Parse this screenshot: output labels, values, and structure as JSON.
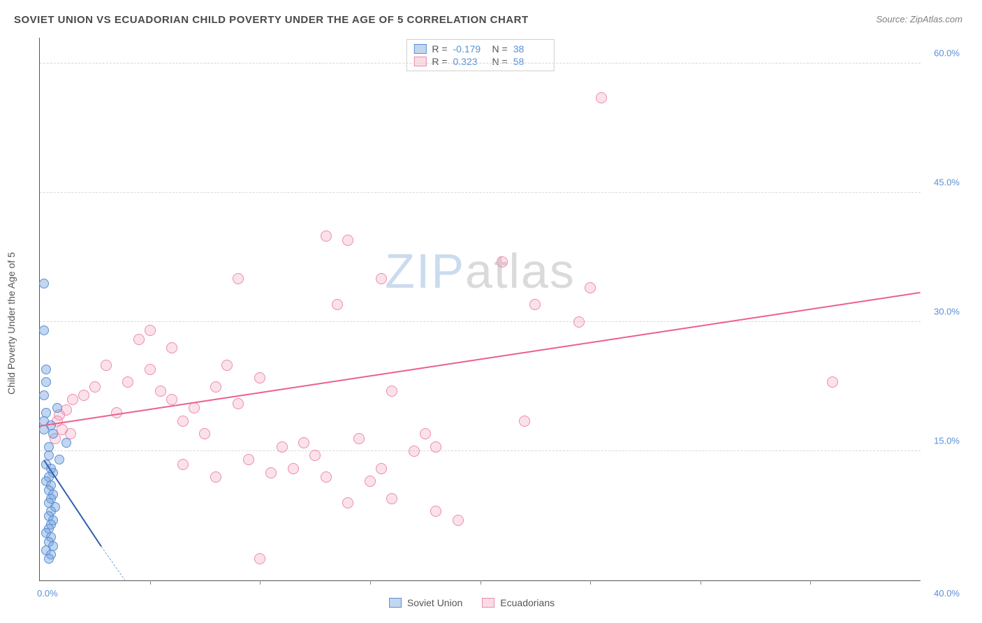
{
  "header": {
    "title": "SOVIET UNION VS ECUADORIAN CHILD POVERTY UNDER THE AGE OF 5 CORRELATION CHART",
    "source_prefix": "Source: ",
    "source_link": "ZipAtlas.com"
  },
  "ylabel": "Child Poverty Under the Age of 5",
  "watermark": {
    "part1": "ZIP",
    "part2": "atlas"
  },
  "axes": {
    "xlim": [
      0,
      40
    ],
    "ylim": [
      0,
      63
    ],
    "ytick_values": [
      15,
      30,
      45,
      60
    ],
    "ytick_labels": [
      "15.0%",
      "30.0%",
      "45.0%",
      "60.0%"
    ],
    "xtick_marks": [
      5,
      10,
      15,
      20,
      25,
      30,
      35
    ],
    "x_left_label": "0.0%",
    "x_right_label": "40.0%",
    "grid_color": "#d8d8d8",
    "background_color": "#ffffff"
  },
  "series": {
    "blue": {
      "name": "Soviet Union",
      "marker_fill": "rgba(120,165,220,0.45)",
      "marker_stroke": "#5a8fd6",
      "marker_size": 14,
      "R_label": "R =",
      "R_value": "-0.179",
      "N_label": "N =",
      "N_value": "38",
      "points": [
        [
          0.2,
          34.5
        ],
        [
          0.2,
          29.0
        ],
        [
          0.3,
          24.5
        ],
        [
          0.3,
          23.0
        ],
        [
          0.2,
          21.5
        ],
        [
          0.8,
          20.0
        ],
        [
          0.3,
          19.5
        ],
        [
          0.2,
          18.5
        ],
        [
          0.5,
          18.0
        ],
        [
          0.2,
          17.5
        ],
        [
          0.6,
          17.0
        ],
        [
          1.2,
          16.0
        ],
        [
          0.4,
          15.5
        ],
        [
          0.4,
          14.5
        ],
        [
          0.9,
          14.0
        ],
        [
          0.3,
          13.5
        ],
        [
          0.5,
          13.0
        ],
        [
          0.6,
          12.5
        ],
        [
          0.4,
          12.0
        ],
        [
          0.3,
          11.5
        ],
        [
          0.5,
          11.0
        ],
        [
          0.4,
          10.5
        ],
        [
          0.6,
          10.0
        ],
        [
          0.5,
          9.5
        ],
        [
          0.4,
          9.0
        ],
        [
          0.7,
          8.5
        ],
        [
          0.5,
          8.0
        ],
        [
          0.4,
          7.5
        ],
        [
          0.6,
          7.0
        ],
        [
          0.5,
          6.5
        ],
        [
          0.4,
          6.0
        ],
        [
          0.3,
          5.5
        ],
        [
          0.5,
          5.0
        ],
        [
          0.4,
          4.5
        ],
        [
          0.6,
          4.0
        ],
        [
          0.3,
          3.5
        ],
        [
          0.5,
          3.0
        ],
        [
          0.4,
          2.5
        ]
      ],
      "trend": {
        "x1": 0.2,
        "y1": 14.0,
        "x2": 2.8,
        "y2": 4.0
      },
      "trend_ext": {
        "x1": 2.8,
        "y1": 4.0,
        "x2": 3.9,
        "y2": 0.0
      }
    },
    "pink": {
      "name": "Ecuadorians",
      "marker_fill": "rgba(240,140,170,0.25)",
      "marker_stroke": "#ec8bac",
      "marker_size": 16,
      "R_label": "R =",
      "R_value": "0.323",
      "N_label": "N =",
      "N_value": "58",
      "points": [
        [
          25.5,
          56.0
        ],
        [
          9.0,
          35.0
        ],
        [
          13.0,
          40.0
        ],
        [
          14.0,
          39.5
        ],
        [
          15.5,
          35.0
        ],
        [
          21.0,
          37.0
        ],
        [
          25.0,
          34.0
        ],
        [
          22.5,
          32.0
        ],
        [
          24.5,
          30.0
        ],
        [
          13.5,
          32.0
        ],
        [
          36.0,
          23.0
        ],
        [
          0.8,
          18.5
        ],
        [
          0.9,
          19.2
        ],
        [
          1.2,
          19.8
        ],
        [
          1.5,
          21.0
        ],
        [
          1.0,
          17.5
        ],
        [
          1.4,
          17.0
        ],
        [
          0.7,
          16.5
        ],
        [
          2.0,
          21.5
        ],
        [
          2.5,
          22.5
        ],
        [
          3.0,
          25.0
        ],
        [
          3.5,
          19.5
        ],
        [
          4.0,
          23.0
        ],
        [
          4.5,
          28.0
        ],
        [
          5.0,
          29.0
        ],
        [
          5.0,
          24.5
        ],
        [
          5.5,
          22.0
        ],
        [
          6.0,
          21.0
        ],
        [
          6.0,
          27.0
        ],
        [
          6.5,
          18.5
        ],
        [
          7.0,
          20.0
        ],
        [
          7.5,
          17.0
        ],
        [
          8.0,
          22.5
        ],
        [
          8.5,
          25.0
        ],
        [
          9.0,
          20.5
        ],
        [
          9.5,
          14.0
        ],
        [
          10.0,
          23.5
        ],
        [
          10.5,
          12.5
        ],
        [
          11.0,
          15.5
        ],
        [
          11.5,
          13.0
        ],
        [
          12.0,
          16.0
        ],
        [
          12.5,
          14.5
        ],
        [
          10.0,
          2.5
        ],
        [
          13.0,
          12.0
        ],
        [
          14.0,
          9.0
        ],
        [
          14.5,
          16.5
        ],
        [
          15.0,
          11.5
        ],
        [
          15.5,
          13.0
        ],
        [
          16.0,
          9.5
        ],
        [
          17.0,
          15.0
        ],
        [
          17.5,
          17.0
        ],
        [
          18.0,
          8.0
        ],
        [
          18.0,
          15.5
        ],
        [
          19.0,
          7.0
        ],
        [
          16.0,
          22.0
        ],
        [
          22.0,
          18.5
        ],
        [
          6.5,
          13.5
        ],
        [
          8.0,
          12.0
        ]
      ],
      "trend": {
        "x1": 0.0,
        "y1": 18.0,
        "x2": 40.0,
        "y2": 33.5
      }
    }
  },
  "bottom_legend": {
    "items": [
      {
        "key": "blue",
        "label": "Soviet Union"
      },
      {
        "key": "pink",
        "label": "Ecuadorians"
      }
    ]
  }
}
